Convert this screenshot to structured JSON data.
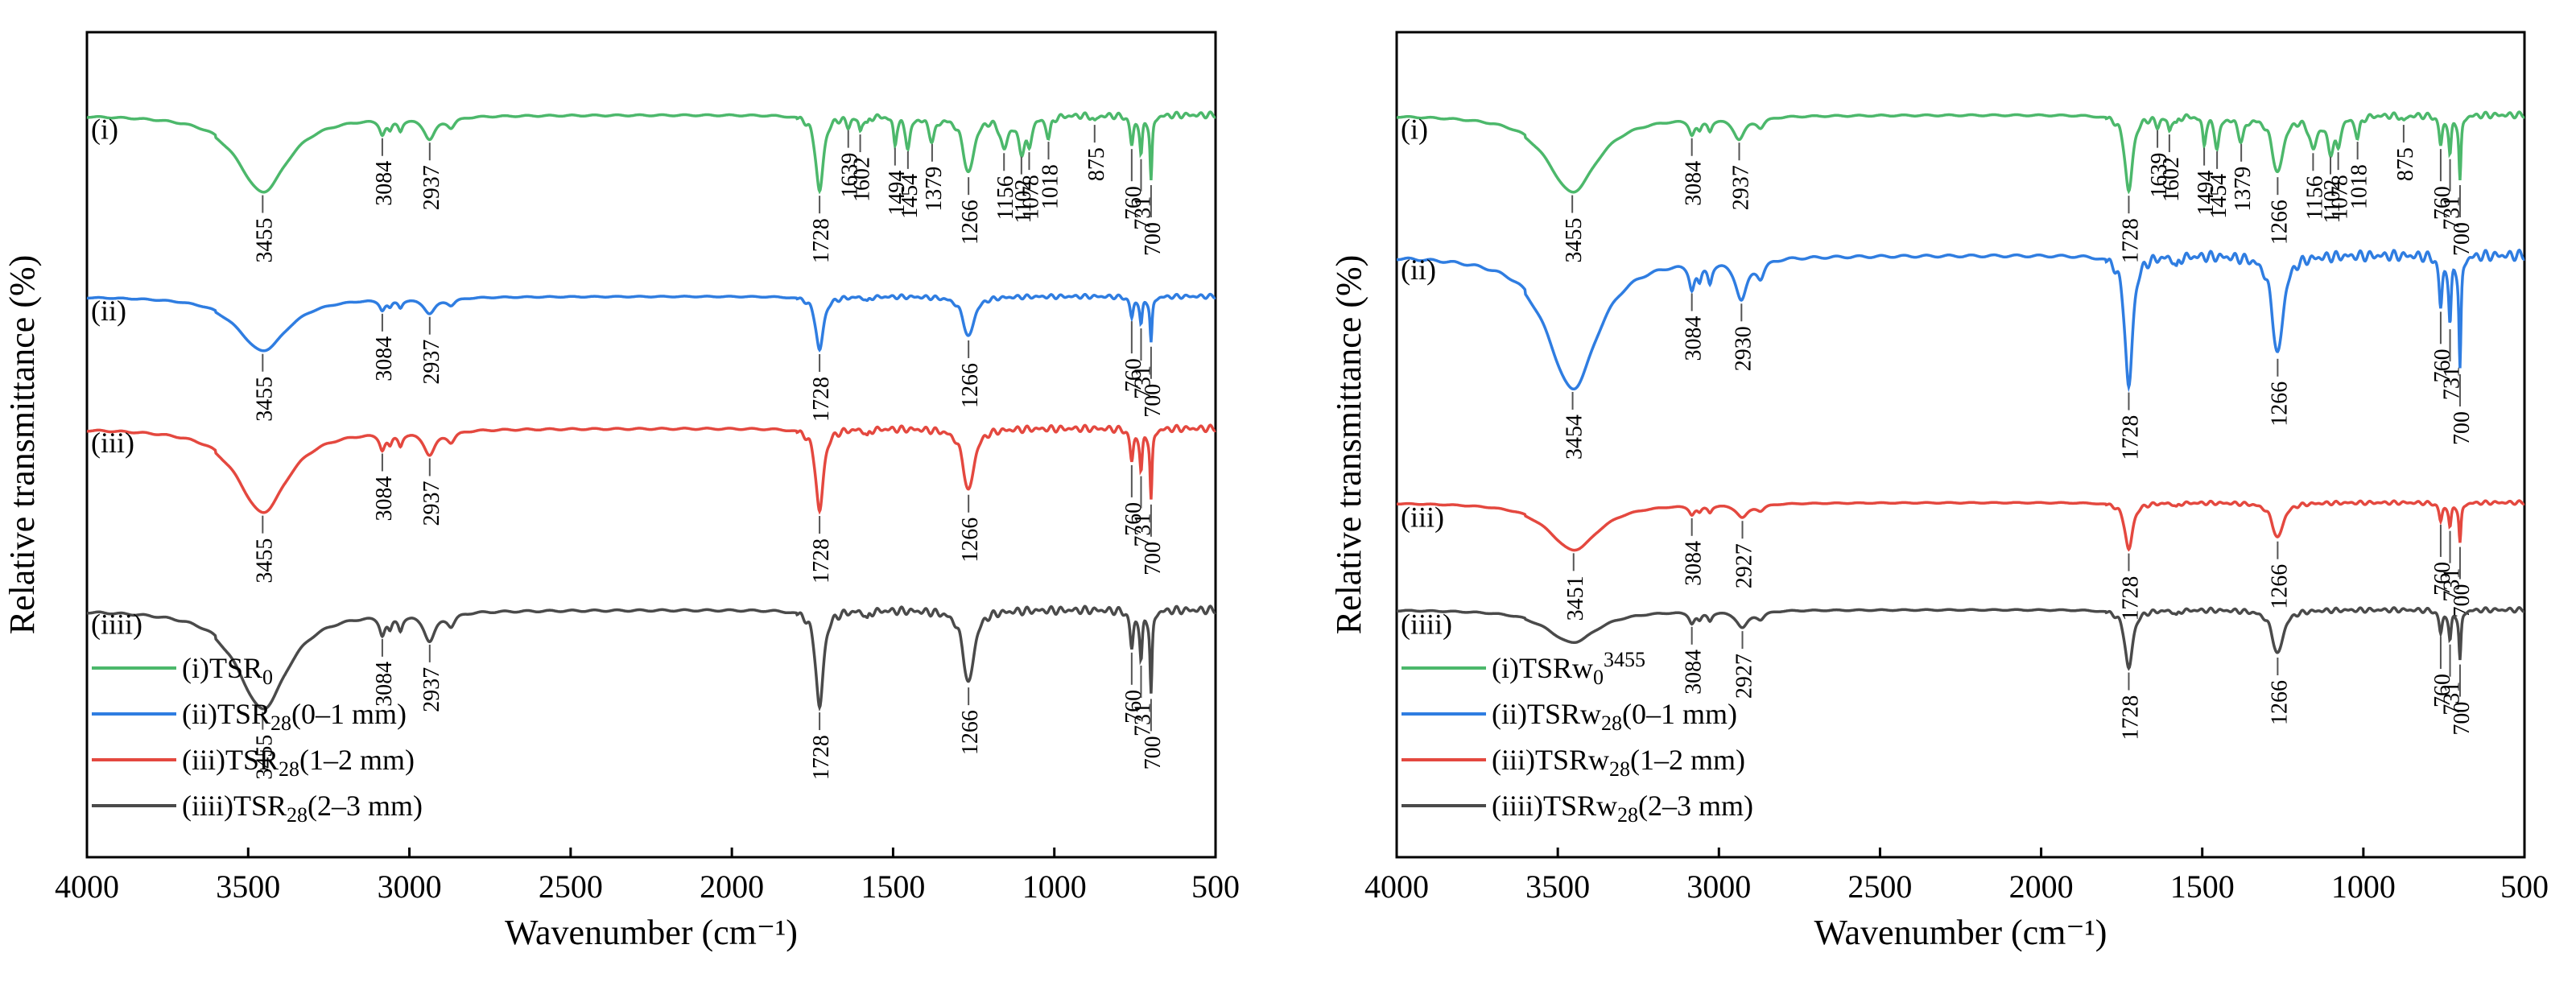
{
  "colors": {
    "series": [
      "#4cb86b",
      "#2f7de1",
      "#e4483f",
      "#4a4a4a"
    ],
    "axis": "#000000",
    "marker": "#555555"
  },
  "chart_data": [
    {
      "type": "line",
      "title": "",
      "xlabel": "Wavenumber (cm⁻¹)",
      "ylabel": "Relative transmittance (%)",
      "xlim": [
        4000,
        500
      ],
      "xticks": [
        4000,
        3500,
        3000,
        2500,
        2000,
        1500,
        1000,
        500
      ],
      "legend_position": "lower-left",
      "series": [
        {
          "roman": "(i)",
          "legend": [
            "(i)TSR",
            "0",
            ""
          ],
          "offset": 0.9,
          "depth": 0.78,
          "bands": [
            3455,
            3084,
            2937,
            1728,
            1639,
            1602,
            1494,
            1454,
            1379,
            1266,
            1156,
            1102,
            1078,
            1018,
            875,
            760,
            731,
            700
          ]
        },
        {
          "roman": "(ii)",
          "legend": [
            "(ii)TSR",
            "28",
            "(0–1 mm)"
          ],
          "offset": 0.68,
          "depth": 0.55,
          "bands": [
            3455,
            3084,
            2937,
            1728,
            1266,
            760,
            731,
            700
          ]
        },
        {
          "roman": "(iii)",
          "legend": [
            "(iii)TSR",
            "28",
            "(1–2 mm)"
          ],
          "offset": 0.52,
          "depth": 0.85,
          "bands": [
            3455,
            3084,
            2937,
            1728,
            1266,
            760,
            731,
            700
          ]
        },
        {
          "roman": "(iiii)",
          "legend": [
            "(iiii)TSR",
            "28",
            "(2–3 mm)"
          ],
          "offset": 0.3,
          "depth": 1.0,
          "bands": [
            3455,
            3084,
            2937,
            1728,
            1266,
            760,
            731,
            700
          ]
        }
      ]
    },
    {
      "type": "line",
      "title": "",
      "xlabel": "Wavenumber (cm⁻¹)",
      "ylabel": "Relative transmittance (%)",
      "xlim": [
        4000,
        500
      ],
      "xticks": [
        4000,
        3500,
        3000,
        2500,
        2000,
        1500,
        1000,
        500
      ],
      "legend_position": "lower-left",
      "series": [
        {
          "roman": "(i)",
          "legend": [
            "(i)TSRw",
            "0",
            "3455"
          ],
          "offset": 0.9,
          "depth": 0.78,
          "bands": [
            3455,
            3084,
            2937,
            1728,
            1639,
            1602,
            1494,
            1454,
            1379,
            1266,
            1156,
            1102,
            1078,
            1018,
            875,
            760,
            731,
            700
          ]
        },
        {
          "roman": "(ii)",
          "legend": [
            "(ii)TSRw",
            "28",
            "(0–1 mm)"
          ],
          "offset": 0.73,
          "depth": 1.35,
          "bands": [
            3454,
            3084,
            2930,
            1728,
            1266,
            760,
            731,
            700
          ]
        },
        {
          "roman": "(iii)",
          "legend": [
            "(iii)TSRw",
            "28",
            "(1–2 mm)"
          ],
          "offset": 0.43,
          "depth": 0.48,
          "bands": [
            3451,
            3084,
            2927,
            1728,
            1266,
            760,
            731,
            700
          ]
        },
        {
          "roman": "(iiii)",
          "legend": [
            "(iiii)TSRw",
            "28",
            "(2–3 mm)"
          ],
          "offset": 0.3,
          "depth": 0.6,
          "bands": [
            3084,
            2927,
            1728,
            1266,
            760,
            731,
            700
          ]
        }
      ]
    }
  ]
}
